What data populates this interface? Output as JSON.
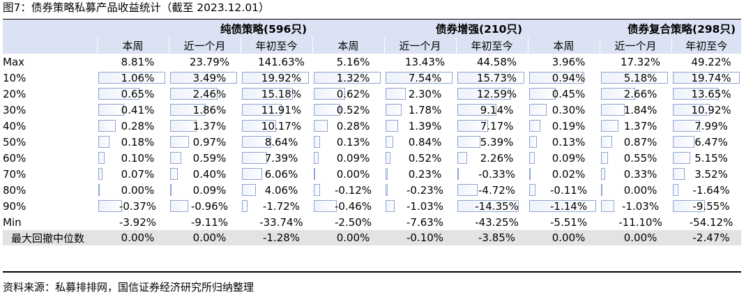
{
  "title": "图7：债券策略私募产品收益统计（截至 2023.12.01）",
  "source": "资料来源：私募排排网，国信证券经济研究所归纳整理",
  "groups": [
    {
      "name": "纯债策略(596只)",
      "periods": [
        "本周",
        "近一个月",
        "年初至今"
      ]
    },
    {
      "name": "债券增强(210只)",
      "periods": [
        "本周",
        "近一个月",
        "年初至今"
      ]
    },
    {
      "name": "债券复合策略(298只)",
      "periods": [
        "本周",
        "近一个月",
        "年初至今"
      ]
    }
  ],
  "rows": [
    {
      "label": "Max",
      "bars": false,
      "values": [
        "8.81%",
        "23.79%",
        "141.63%",
        "5.16%",
        "13.43%",
        "44.58%",
        "3.96%",
        "17.32%",
        "49.22%"
      ]
    },
    {
      "label": "10%",
      "bars": true,
      "values": [
        "1.06%",
        "3.49%",
        "19.92%",
        "1.32%",
        "7.54%",
        "15.73%",
        "0.94%",
        "5.18%",
        "19.74%"
      ]
    },
    {
      "label": "20%",
      "bars": true,
      "values": [
        "0.65%",
        "2.46%",
        "15.18%",
        "0.62%",
        "2.30%",
        "12.59%",
        "0.45%",
        "2.66%",
        "13.65%"
      ]
    },
    {
      "label": "30%",
      "bars": true,
      "values": [
        "0.41%",
        "1.86%",
        "11.91%",
        "0.52%",
        "1.78%",
        "9.14%",
        "0.30%",
        "1.84%",
        "10.92%"
      ]
    },
    {
      "label": "40%",
      "bars": true,
      "values": [
        "0.28%",
        "1.37%",
        "10.17%",
        "0.28%",
        "1.39%",
        "7.17%",
        "0.19%",
        "1.37%",
        "7.99%"
      ]
    },
    {
      "label": "50%",
      "bars": true,
      "values": [
        "0.18%",
        "0.97%",
        "8.64%",
        "0.13%",
        "0.84%",
        "5.39%",
        "0.13%",
        "0.87%",
        "6.47%"
      ]
    },
    {
      "label": "60%",
      "bars": true,
      "values": [
        "0.10%",
        "0.59%",
        "7.39%",
        "0.09%",
        "0.52%",
        "2.26%",
        "0.09%",
        "0.55%",
        "5.15%"
      ]
    },
    {
      "label": "70%",
      "bars": true,
      "values": [
        "0.07%",
        "0.40%",
        "6.06%",
        "0.00%",
        "0.23%",
        "-0.33%",
        "0.02%",
        "0.33%",
        "3.52%"
      ]
    },
    {
      "label": "80%",
      "bars": true,
      "values": [
        "0.00%",
        "0.09%",
        "4.06%",
        "-0.12%",
        "-0.23%",
        "-4.72%",
        "-0.11%",
        "0.00%",
        "-1.64%"
      ]
    },
    {
      "label": "90%",
      "bars": true,
      "values": [
        "-0.37%",
        "-0.96%",
        "-1.72%",
        "-0.46%",
        "-1.03%",
        "-14.35%",
        "-1.14%",
        "-1.03%",
        "-9.55%"
      ]
    },
    {
      "label": "Min",
      "bars": false,
      "values": [
        "-3.92%",
        "-9.11%",
        "-33.74%",
        "-2.50%",
        "-7.63%",
        "-43.25%",
        "-5.51%",
        "-11.10%",
        "-54.12%"
      ]
    }
  ],
  "drawdown_row": {
    "label": "最大回撤中位数",
    "values": [
      "0.00%",
      "0.00%",
      "-1.28%",
      "0.00%",
      "-0.10%",
      "-3.85%",
      "0.00%",
      "0.00%",
      "-2.47%"
    ]
  }
}
